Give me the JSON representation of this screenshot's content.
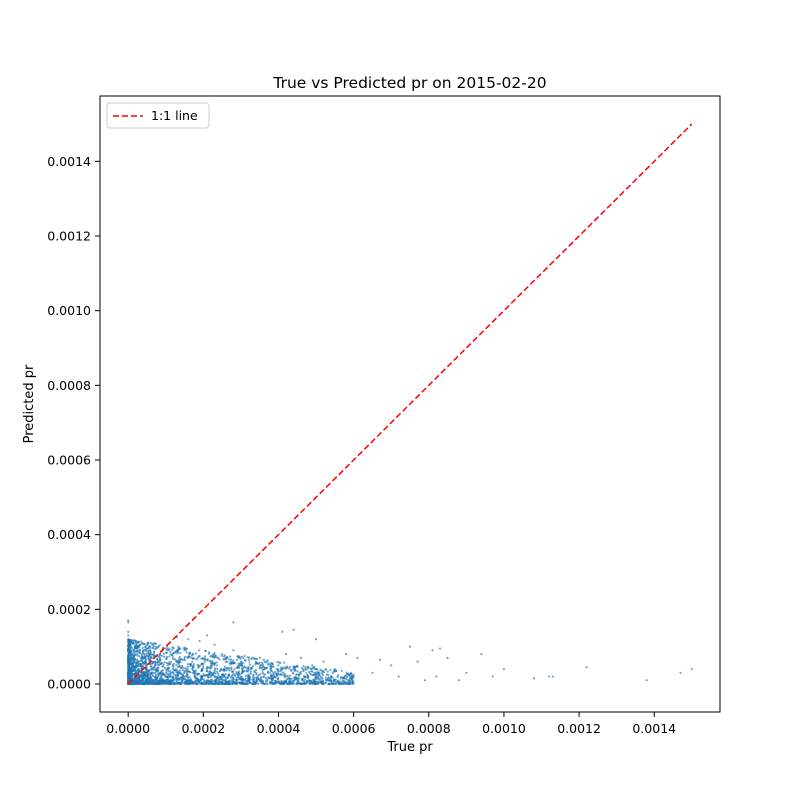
{
  "chart_data": {
    "type": "scatter",
    "title": "True vs Predicted pr on 2015-02-20",
    "xlabel": "True pr",
    "ylabel": "Predicted pr",
    "xlim": [
      -7.5e-05,
      0.001575
    ],
    "ylim": [
      -7.5e-05,
      0.001575
    ],
    "xticks": [
      0.0,
      0.0002,
      0.0004,
      0.0006,
      0.0008,
      0.001,
      0.0012,
      0.0014
    ],
    "xtick_labels": [
      "0.0000",
      "0.0002",
      "0.0004",
      "0.0006",
      "0.0008",
      "0.0010",
      "0.0012",
      "0.0014"
    ],
    "yticks": [
      0.0,
      0.0002,
      0.0004,
      0.0006,
      0.0008,
      0.001,
      0.0012,
      0.0014
    ],
    "ytick_labels": [
      "0.0000",
      "0.0002",
      "0.0004",
      "0.0006",
      "0.0008",
      "0.0010",
      "0.0012",
      "0.0014"
    ],
    "grid": false,
    "legend": {
      "placement": "upper-left",
      "entries": [
        "1:1 line"
      ]
    },
    "series": [
      {
        "kind": "scatter",
        "color": "#1f77b4",
        "points": [
          [
            0.0,
            0.00017
          ],
          [
            0.0,
            0.000165
          ],
          [
            0.0,
            0.00014
          ],
          [
            0.0,
            0.00013
          ],
          [
            0.0,
            0.00012
          ],
          [
            1e-05,
            0.00011
          ],
          [
            2e-05,
            0.0001
          ],
          [
            4e-05,
            9e-05
          ],
          [
            6e-05,
            8.5e-05
          ],
          [
            8e-05,
            0.0001
          ],
          [
            0.0001,
            9.5e-05
          ],
          [
            0.00013,
            0.000125
          ],
          [
            0.00016,
            0.00012
          ],
          [
            0.00019,
            0.000115
          ],
          [
            0.00021,
            0.00013
          ],
          [
            0.00023,
            0.000105
          ],
          [
            0.00028,
            0.000165
          ],
          [
            0.00025,
            8e-05
          ],
          [
            0.00028,
            9e-05
          ],
          [
            0.00031,
            7.5e-05
          ],
          [
            0.00033,
            7e-05
          ],
          [
            0.00035,
            7e-05
          ],
          [
            0.00037,
            6e-05
          ],
          [
            0.0004,
            5e-05
          ],
          [
            0.00041,
            0.00014
          ],
          [
            0.00044,
            0.000145
          ],
          [
            0.00042,
            8e-05
          ],
          [
            0.00046,
            7e-05
          ],
          [
            0.00049,
            5e-05
          ],
          [
            0.0005,
            0.00012
          ],
          [
            0.00052,
            6e-05
          ],
          [
            0.00055,
            4e-05
          ],
          [
            0.00058,
            8e-05
          ],
          [
            0.00061,
            7e-05
          ],
          [
            0.0006,
            2e-05
          ],
          [
            0.00065,
            3e-05
          ],
          [
            0.00067,
            6.5e-05
          ],
          [
            0.0007,
            5e-05
          ],
          [
            0.00072,
            2e-05
          ],
          [
            0.00075,
            0.0001
          ],
          [
            0.00077,
            6e-05
          ],
          [
            0.00079,
            1e-05
          ],
          [
            0.00082,
            2e-05
          ],
          [
            0.00081,
            9e-05
          ],
          [
            0.00083,
            9.5e-05
          ],
          [
            0.00085,
            7e-05
          ],
          [
            0.00088,
            1e-05
          ],
          [
            0.0009,
            3e-05
          ],
          [
            0.00094,
            8e-05
          ],
          [
            0.00097,
            2e-05
          ],
          [
            0.001,
            4e-05
          ],
          [
            0.00108,
            1.5e-05
          ],
          [
            0.00113,
            2e-05
          ],
          [
            0.00112,
            2e-05
          ],
          [
            0.00122,
            4.5e-05
          ],
          [
            0.00138,
            1e-05
          ],
          [
            0.00147,
            3e-05
          ],
          [
            0.0015,
            4e-05
          ]
        ],
        "dense_cloud": {
          "description": "dense cluster near origin",
          "x_range": [
            0.0,
            0.0006
          ],
          "y_range": [
            0.0,
            0.00012
          ]
        }
      },
      {
        "kind": "line",
        "name": "1:1 line",
        "color": "#ff0000",
        "style": "dashed",
        "points": [
          [
            0.0,
            0.0
          ],
          [
            0.0015,
            0.0015
          ]
        ]
      }
    ]
  }
}
